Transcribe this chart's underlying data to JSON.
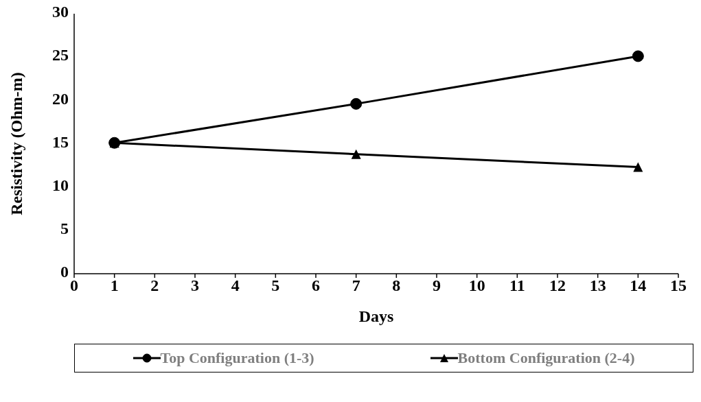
{
  "chart_data": {
    "type": "line",
    "xlabel": "Days",
    "ylabel": "Resistivity (Ohm-m)",
    "x": [
      1,
      7,
      14
    ],
    "series": [
      {
        "name": "Top Configuration (1-3)",
        "color": "#000000",
        "marker": "circle",
        "values": [
          15.1,
          19.6,
          25.1
        ]
      },
      {
        "name": "Bottom Configuration (2-4)",
        "color": "#000000",
        "marker": "triangle",
        "values": [
          15.1,
          13.8,
          12.3
        ]
      }
    ],
    "xlim": [
      0,
      15
    ],
    "xticks": [
      0,
      1,
      2,
      3,
      4,
      5,
      6,
      7,
      8,
      9,
      10,
      11,
      12,
      13,
      14,
      15
    ],
    "ylim": [
      0,
      30
    ],
    "yticks": [
      0,
      5,
      10,
      15,
      20,
      25,
      30
    ],
    "grid": false,
    "legend": "bottom",
    "line_style": "solid"
  }
}
